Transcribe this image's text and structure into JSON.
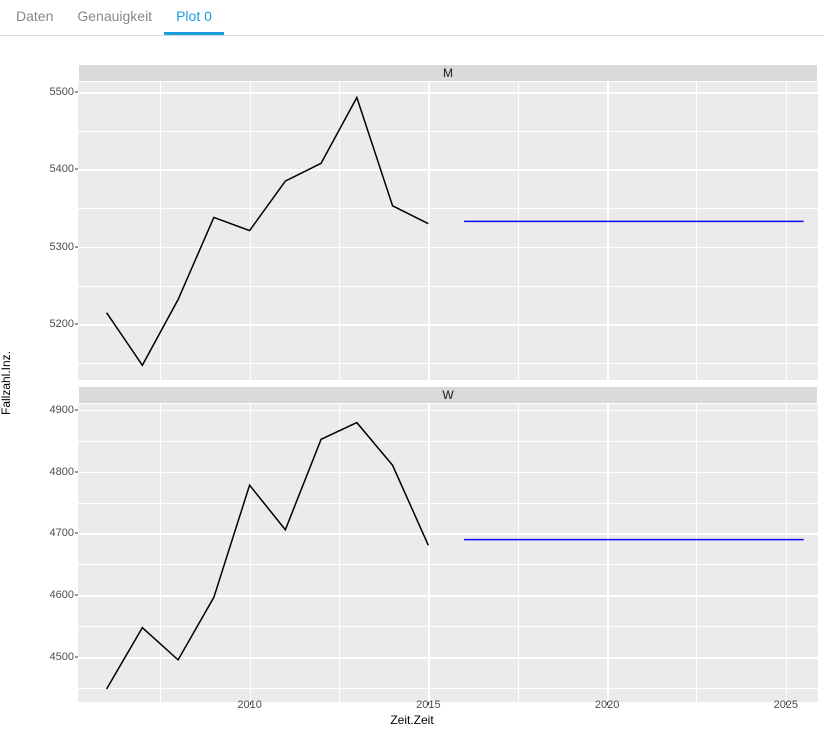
{
  "tabs": {
    "items": [
      {
        "label": "Daten",
        "active": false
      },
      {
        "label": "Genauigkeit",
        "active": false
      },
      {
        "label": "Plot 0",
        "active": true
      }
    ],
    "active_color": "#1a9cde",
    "inactive_color": "#888888",
    "border_color": "#dddddd"
  },
  "plot": {
    "ylabel": "Fallzahl.Inz.",
    "xlabel": "Zeit.Zeit",
    "panel_background": "#ebebeb",
    "grid_major_color": "#ffffff",
    "grid_minor_color": "#ffffff",
    "strip_background": "#d9d9d9",
    "tick_text_color": "#4d4d4d",
    "label_fontsize": 12,
    "tick_fontsize": 11,
    "line_color_data": "#000000",
    "line_color_forecast": "#0808fa",
    "line_width_data": 1.5,
    "line_width_forecast": 1.5,
    "x_axis": {
      "min": 2005.2,
      "max": 2025.9,
      "major_ticks": [
        2010,
        2015,
        2020,
        2025
      ],
      "minor_ticks": [
        2007.5,
        2012.5,
        2017.5,
        2022.5
      ]
    },
    "facets": [
      {
        "strip_label": "M",
        "y_axis": {
          "min": 5128,
          "max": 5513,
          "major_ticks": [
            5200,
            5300,
            5400,
            5500
          ],
          "minor_ticks": [
            5150,
            5250,
            5350,
            5450
          ]
        },
        "data_series": {
          "x": [
            2006,
            2007,
            2008,
            2009,
            2010,
            2011,
            2012,
            2013,
            2014,
            2015
          ],
          "y": [
            5215,
            5147,
            5232,
            5338,
            5321,
            5385,
            5408,
            5493,
            5353,
            5330
          ]
        },
        "forecast_series": {
          "x": [
            2016,
            2025.5
          ],
          "y": [
            5333,
            5333
          ]
        }
      },
      {
        "strip_label": "W",
        "y_axis": {
          "min": 4428,
          "max": 4909,
          "major_ticks": [
            4500,
            4600,
            4700,
            4800,
            4900
          ],
          "minor_ticks": [
            4450,
            4550,
            4650,
            4750,
            4850
          ]
        },
        "data_series": {
          "x": [
            2006,
            2007,
            2008,
            2009,
            2010,
            2011,
            2012,
            2013,
            2014,
            2015
          ],
          "y": [
            4449,
            4548,
            4496,
            4597,
            4778,
            4706,
            4852,
            4879,
            4810,
            4681
          ]
        },
        "forecast_series": {
          "x": [
            2016,
            2025.5
          ],
          "y": [
            4690,
            4690
          ]
        }
      }
    ]
  }
}
